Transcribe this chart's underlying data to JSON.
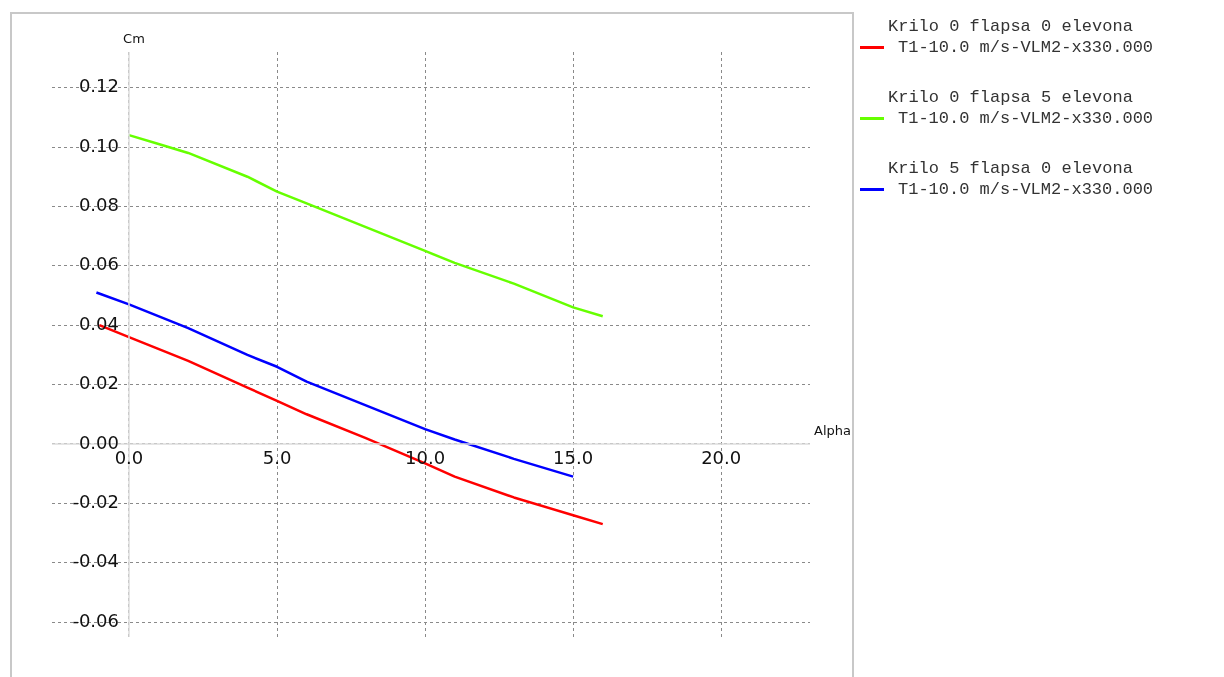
{
  "chart_data": {
    "type": "line",
    "xlabel": "Alpha",
    "ylabel": "Cm",
    "xlim": [
      -2.6,
      23
    ],
    "ylim": [
      -0.065,
      0.132
    ],
    "xticks": [
      {
        "value": 0,
        "label": "0.0"
      },
      {
        "value": 5,
        "label": "5.0"
      },
      {
        "value": 10,
        "label": "10.0"
      },
      {
        "value": 15,
        "label": "15.0"
      },
      {
        "value": 20,
        "label": "20.0"
      }
    ],
    "yticks": [
      {
        "value": -0.06,
        "label": "-0.06"
      },
      {
        "value": -0.04,
        "label": "-0.04"
      },
      {
        "value": -0.02,
        "label": "-0.02"
      },
      {
        "value": 0,
        "label": "0.00"
      },
      {
        "value": 0.02,
        "label": "0.02"
      },
      {
        "value": 0.04,
        "label": "0.04"
      },
      {
        "value": 0.06,
        "label": "0.06"
      },
      {
        "value": 0.08,
        "label": "0.08"
      },
      {
        "value": 0.1,
        "label": "0.10"
      },
      {
        "value": 0.12,
        "label": "0.12"
      }
    ],
    "grid": true,
    "legend": "right",
    "marker": "none",
    "line_style": "solid",
    "series": [
      {
        "name": "Krilo 0 flapsa 0 elevona\nT1-10.0 m/s-VLM2-x330.000",
        "color": "#ff0000",
        "x": [
          -1,
          0,
          2,
          4,
          5,
          6,
          8,
          10,
          11,
          13,
          15,
          16
        ],
        "values": [
          0.04,
          0.036,
          0.028,
          0.019,
          0.0145,
          0.01,
          0.002,
          -0.0065,
          -0.011,
          -0.018,
          -0.024,
          -0.027
        ]
      },
      {
        "name": "Krilo 0 flapsa 5 elevona\nT1-10.0 m/s-VLM2-x330.000",
        "color": "#66ff00",
        "x": [
          0,
          1,
          2,
          4,
          5,
          6,
          8,
          10,
          11,
          13,
          15,
          16
        ],
        "values": [
          0.104,
          0.101,
          0.098,
          0.09,
          0.085,
          0.081,
          0.073,
          0.065,
          0.061,
          0.054,
          0.046,
          0.043
        ]
      },
      {
        "name": "Krilo 5 flapsa 0 elevona\nT1-10.0 m/s-VLM2-x330.000",
        "color": "#0000ff",
        "x": [
          -1.1,
          0,
          2,
          4,
          5,
          6,
          8,
          10,
          11,
          13,
          15
        ],
        "values": [
          0.051,
          0.047,
          0.039,
          0.03,
          0.026,
          0.021,
          0.013,
          0.005,
          0.0015,
          -0.005,
          -0.011
        ]
      }
    ]
  }
}
